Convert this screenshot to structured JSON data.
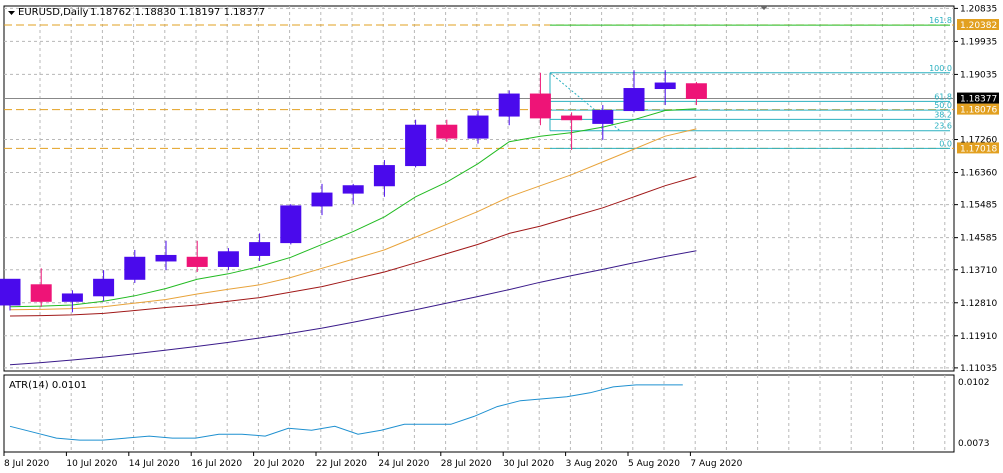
{
  "header": {
    "symbol": "EURUSD,Daily",
    "ohlc": "1.18762 1.18830 1.18197 1.18377"
  },
  "colors": {
    "bull_candle": "#4a0aec",
    "bear_candle": "#ee1477",
    "ma_fast": "#22bb22",
    "ma_mid": "#e8a33a",
    "ma_slow": "#a01818",
    "ma_long": "#3a1a8a",
    "fib": "#2ab0c0",
    "hline": "#e2a020",
    "price_tag": "#000000",
    "atr_line": "#1e90d0"
  },
  "price_axis": {
    "labels": [
      "1.20835",
      "1.19935",
      "1.19035",
      "1.17260",
      "1.16360",
      "1.15485",
      "1.14585",
      "1.13710",
      "1.12810",
      "1.11910",
      "1.11035"
    ],
    "current_price": "1.18377",
    "hline_prices": [
      "1.20382",
      "1.17018",
      "1.18076"
    ]
  },
  "fib_levels": [
    {
      "label": "161.8",
      "price": 1.2038
    },
    {
      "label": "100.0",
      "price": 1.1908
    },
    {
      "label": "61.8",
      "price": 1.183
    },
    {
      "label": "50.0",
      "price": 1.1806
    },
    {
      "label": "38.2",
      "price": 1.1781
    },
    {
      "label": "23.6",
      "price": 1.175
    },
    {
      "label": "0.0",
      "price": 1.1702
    }
  ],
  "indicator": {
    "label": "ATR(14) 0.0101",
    "axis_labels": [
      "0.0102",
      "0.0073"
    ],
    "min": 0.0071,
    "max": 0.0103,
    "values": [
      0.008,
      0.0077,
      0.0074,
      0.0073,
      0.0073,
      0.0074,
      0.0075,
      0.0074,
      0.0074,
      0.0076,
      0.0076,
      0.0075,
      0.0079,
      0.0078,
      0.008,
      0.0076,
      0.0078,
      0.0081,
      0.0081,
      0.0081,
      0.0085,
      0.009,
      0.0093,
      0.0094,
      0.0095,
      0.0097,
      0.01,
      0.0101,
      0.0101,
      0.0101
    ]
  },
  "x_labels": [
    "8 Jul 2020",
    "10 Jul 2020",
    "14 Jul 2020",
    "16 Jul 2020",
    "20 Jul 2020",
    "22 Jul 2020",
    "24 Jul 2020",
    "28 Jul 2020",
    "30 Jul 2020",
    "3 Aug 2020",
    "5 Aug 2020",
    "7 Aug 2020"
  ],
  "chart_data": {
    "type": "candlestick",
    "symbol": "EURUSD",
    "timeframe": "Daily",
    "ylim": [
      1.1095,
      1.209
    ],
    "candles": [
      {
        "o": 1.1275,
        "h": 1.1345,
        "l": 1.126,
        "c": 1.1345
      },
      {
        "o": 1.133,
        "h": 1.1375,
        "l": 1.127,
        "c": 1.1285
      },
      {
        "o": 1.1285,
        "h": 1.1315,
        "l": 1.1255,
        "c": 1.1305
      },
      {
        "o": 1.13,
        "h": 1.137,
        "l": 1.1285,
        "c": 1.1345
      },
      {
        "o": 1.1345,
        "h": 1.1425,
        "l": 1.1335,
        "c": 1.1405
      },
      {
        "o": 1.1395,
        "h": 1.145,
        "l": 1.137,
        "c": 1.141
      },
      {
        "o": 1.1405,
        "h": 1.145,
        "l": 1.1365,
        "c": 1.138
      },
      {
        "o": 1.138,
        "h": 1.143,
        "l": 1.137,
        "c": 1.142
      },
      {
        "o": 1.141,
        "h": 1.147,
        "l": 1.1395,
        "c": 1.1445
      },
      {
        "o": 1.1445,
        "h": 1.155,
        "l": 1.144,
        "c": 1.1545
      },
      {
        "o": 1.1545,
        "h": 1.1605,
        "l": 1.152,
        "c": 1.158
      },
      {
        "o": 1.158,
        "h": 1.1605,
        "l": 1.155,
        "c": 1.16
      },
      {
        "o": 1.16,
        "h": 1.167,
        "l": 1.157,
        "c": 1.1655
      },
      {
        "o": 1.1655,
        "h": 1.178,
        "l": 1.165,
        "c": 1.1765
      },
      {
        "o": 1.1765,
        "h": 1.178,
        "l": 1.172,
        "c": 1.173
      },
      {
        "o": 1.173,
        "h": 1.1805,
        "l": 1.1715,
        "c": 1.179
      },
      {
        "o": 1.179,
        "h": 1.186,
        "l": 1.1765,
        "c": 1.185
      },
      {
        "o": 1.185,
        "h": 1.1908,
        "l": 1.1765,
        "c": 1.1785
      },
      {
        "o": 1.179,
        "h": 1.18,
        "l": 1.1698,
        "c": 1.178
      },
      {
        "o": 1.177,
        "h": 1.182,
        "l": 1.1725,
        "c": 1.1805
      },
      {
        "o": 1.1805,
        "h": 1.1915,
        "l": 1.18,
        "c": 1.1865
      },
      {
        "o": 1.1865,
        "h": 1.1915,
        "l": 1.182,
        "c": 1.188
      },
      {
        "o": 1.1878,
        "h": 1.1883,
        "l": 1.182,
        "c": 1.1838
      }
    ],
    "ma_fast": [
      1.127,
      1.1272,
      1.1275,
      1.1285,
      1.13,
      1.132,
      1.1345,
      1.136,
      1.138,
      1.1405,
      1.144,
      1.1475,
      1.1515,
      1.157,
      1.161,
      1.166,
      1.172,
      1.1735,
      1.1745,
      1.176,
      1.178,
      1.1805,
      1.181
    ],
    "ma_mid": [
      1.1262,
      1.1263,
      1.1265,
      1.127,
      1.128,
      1.129,
      1.1305,
      1.1318,
      1.133,
      1.135,
      1.1375,
      1.14,
      1.1425,
      1.146,
      1.1495,
      1.153,
      1.157,
      1.16,
      1.163,
      1.1665,
      1.17,
      1.1735,
      1.1755
    ],
    "ma_slow": [
      1.1245,
      1.1246,
      1.1248,
      1.1252,
      1.126,
      1.1268,
      1.1275,
      1.1285,
      1.1295,
      1.131,
      1.1325,
      1.1345,
      1.1365,
      1.139,
      1.1415,
      1.144,
      1.147,
      1.149,
      1.1515,
      1.154,
      1.157,
      1.16,
      1.1625
    ],
    "ma_long": [
      1.1112,
      1.1118,
      1.1125,
      1.1133,
      1.1142,
      1.1152,
      1.1162,
      1.1173,
      1.1185,
      1.1198,
      1.1212,
      1.1228,
      1.1245,
      1.1262,
      1.128,
      1.1298,
      1.1317,
      1.1337,
      1.1355,
      1.1372,
      1.139,
      1.1407,
      1.1423
    ]
  }
}
